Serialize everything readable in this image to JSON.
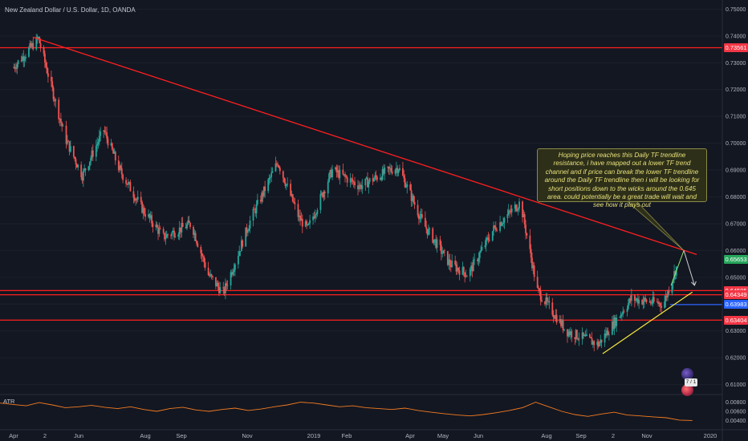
{
  "symbol": {
    "title": "New Zealand Dollar / U.S. Dollar, 1D, OANDA"
  },
  "indicator": {
    "name": "ATR"
  },
  "annotation": {
    "text": "Hoping price reaches this Daily TF trendline resistance, i have mapped out a lower TF trend channel and if price can break the lower TF trendline around the Daily TF trendline then i will be looking for short positions down to the wicks around the 0.645 area. could potentially be a great trade will wait and see how it plays out"
  },
  "badge": {
    "text": "7 / 1"
  },
  "price_tags": [
    {
      "label": "0.73561",
      "value": 0.73561,
      "color": "#f23645"
    },
    {
      "label": "0.65653",
      "value": 0.65653,
      "color": "#26a65b"
    },
    {
      "label": "0.64505",
      "value": 0.64505,
      "color": "#f23645"
    },
    {
      "label": "0.64349",
      "value": 0.64349,
      "color": "#f23645"
    },
    {
      "label": "0.63983",
      "value": 0.63983,
      "color": "#2962ff"
    },
    {
      "label": "0.63404",
      "value": 0.63404,
      "color": "#f23645"
    }
  ],
  "colors": {
    "up": "#26a69a",
    "down": "#ef5350",
    "resistance": "#ff1f1f",
    "support_trend": "#f5e83c",
    "atr": "#f57c20",
    "blue_level": "#2962ff",
    "arrow": "#d0d0d0"
  },
  "chart_data": {
    "type": "candlestick",
    "title": "New Zealand Dollar / U.S. Dollar, 1D, OANDA",
    "y_axis_labels": [
      "0.75000",
      "0.74000",
      "0.73000",
      "0.72000",
      "0.71000",
      "0.70000",
      "0.69000",
      "0.68000",
      "0.67000",
      "0.66000",
      "0.65000",
      "0.64000",
      "0.63000",
      "0.62000",
      "0.61000"
    ],
    "ylim": [
      0.6063,
      0.7534
    ],
    "x_axis_labels": [
      "Apr",
      "2",
      "Jun",
      "Aug",
      "Sep",
      "Nov",
      "2019",
      "Feb",
      "Apr",
      "May",
      "Jun",
      "Aug",
      "Sep",
      "2",
      "Nov",
      "2020"
    ],
    "price_path": [
      [
        "2018-04-01",
        0.728
      ],
      [
        "2018-04-25",
        0.739
      ],
      [
        "2018-05-20",
        0.702
      ],
      [
        "2018-06-05",
        0.688
      ],
      [
        "2018-06-25",
        0.705
      ],
      [
        "2018-07-10",
        0.69
      ],
      [
        "2018-08-01",
        0.675
      ],
      [
        "2018-08-20",
        0.665
      ],
      [
        "2018-09-15",
        0.67
      ],
      [
        "2018-10-01",
        0.651
      ],
      [
        "2018-10-15",
        0.644
      ],
      [
        "2018-11-10",
        0.672
      ],
      [
        "2018-12-05",
        0.693
      ],
      [
        "2018-12-25",
        0.672
      ],
      [
        "2019-01-02",
        0.668
      ],
      [
        "2019-01-25",
        0.69
      ],
      [
        "2019-02-20",
        0.684
      ],
      [
        "2019-03-20",
        0.69
      ],
      [
        "2019-03-28",
        0.691
      ],
      [
        "2019-04-20",
        0.67
      ],
      [
        "2019-05-15",
        0.655
      ],
      [
        "2019-06-01",
        0.651
      ],
      [
        "2019-06-25",
        0.668
      ],
      [
        "2019-07-20",
        0.678
      ],
      [
        "2019-08-05",
        0.645
      ],
      [
        "2019-09-01",
        0.63
      ],
      [
        "2019-10-01",
        0.625
      ],
      [
        "2019-11-01",
        0.642
      ],
      [
        "2019-12-01",
        0.64
      ],
      [
        "2019-12-15",
        0.656
      ]
    ],
    "resistance_trendline": [
      [
        "2018-04-20",
        0.7395
      ],
      [
        "2020-01-01",
        0.6585
      ]
    ],
    "support_trendline": [
      [
        "2019-10-05",
        0.6215
      ],
      [
        "2019-12-28",
        0.6445
      ]
    ],
    "horizontal_levels": [
      0.73561,
      0.64505,
      0.64349,
      0.63983,
      0.63404
    ],
    "projection": [
      [
        "2019-12-08",
        0.647
      ],
      [
        "2019-12-20",
        0.66
      ],
      [
        "2019-12-30",
        0.647
      ]
    ],
    "atr": {
      "name": "ATR",
      "y_axis_labels": [
        "0.00800",
        "0.00600",
        "0.00400"
      ],
      "ylim": [
        0.0025,
        0.0095
      ],
      "values": [
        0.0078,
        0.0075,
        0.0072,
        0.0079,
        0.0074,
        0.0068,
        0.007,
        0.0073,
        0.0069,
        0.0066,
        0.007,
        0.0064,
        0.006,
        0.0066,
        0.0069,
        0.0063,
        0.006,
        0.0064,
        0.0067,
        0.0062,
        0.0065,
        0.007,
        0.0074,
        0.008,
        0.0078,
        0.0074,
        0.007,
        0.0072,
        0.0068,
        0.0066,
        0.0064,
        0.0067,
        0.0062,
        0.0058,
        0.0055,
        0.0052,
        0.005,
        0.0053,
        0.0057,
        0.0062,
        0.0068,
        0.008,
        0.007,
        0.006,
        0.0053,
        0.0049,
        0.0054,
        0.0058,
        0.0052,
        0.005,
        0.0048,
        0.0046,
        0.0041,
        0.004
      ],
      "x_range": [
        "2018-03-20",
        "2019-12-28"
      ]
    }
  }
}
